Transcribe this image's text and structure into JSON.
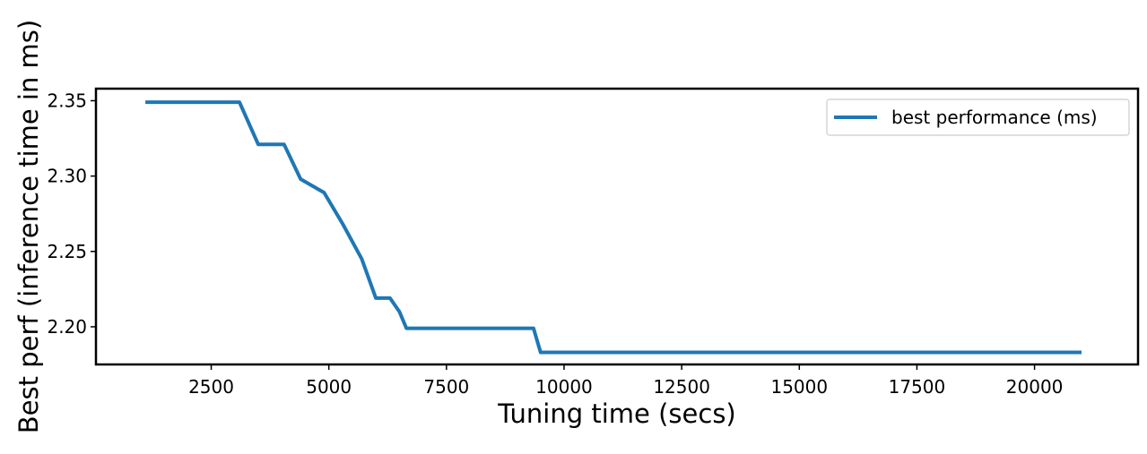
{
  "chart_data": {
    "type": "line",
    "title": "",
    "xlabel": "Tuning time (secs)",
    "ylabel": "Best perf (inference time in ms)",
    "xlim": [
      50,
      22200
    ],
    "ylim": [
      2.175,
      2.358
    ],
    "xticks": [
      2500,
      5000,
      7500,
      10000,
      12500,
      15000,
      17500,
      20000
    ],
    "xtick_labels": [
      "2500",
      "5000",
      "7500",
      "10000",
      "12500",
      "15000",
      "17500",
      "20000"
    ],
    "yticks": [
      2.2,
      2.25,
      2.3,
      2.35
    ],
    "ytick_labels": [
      "2.20",
      "2.25",
      "2.30",
      "2.35"
    ],
    "grid": false,
    "legend_position": "top-right",
    "series": [
      {
        "name": "best performance (ms)",
        "color": "#1f77b4",
        "x": [
          1100,
          3100,
          3500,
          4050,
          4400,
          4900,
          5300,
          5700,
          6000,
          6300,
          6500,
          6650,
          9350,
          9500,
          21000
        ],
        "y": [
          2.349,
          2.349,
          2.321,
          2.321,
          2.298,
          2.289,
          2.268,
          2.245,
          2.219,
          2.219,
          2.21,
          2.199,
          2.199,
          2.183,
          2.183
        ]
      }
    ]
  }
}
